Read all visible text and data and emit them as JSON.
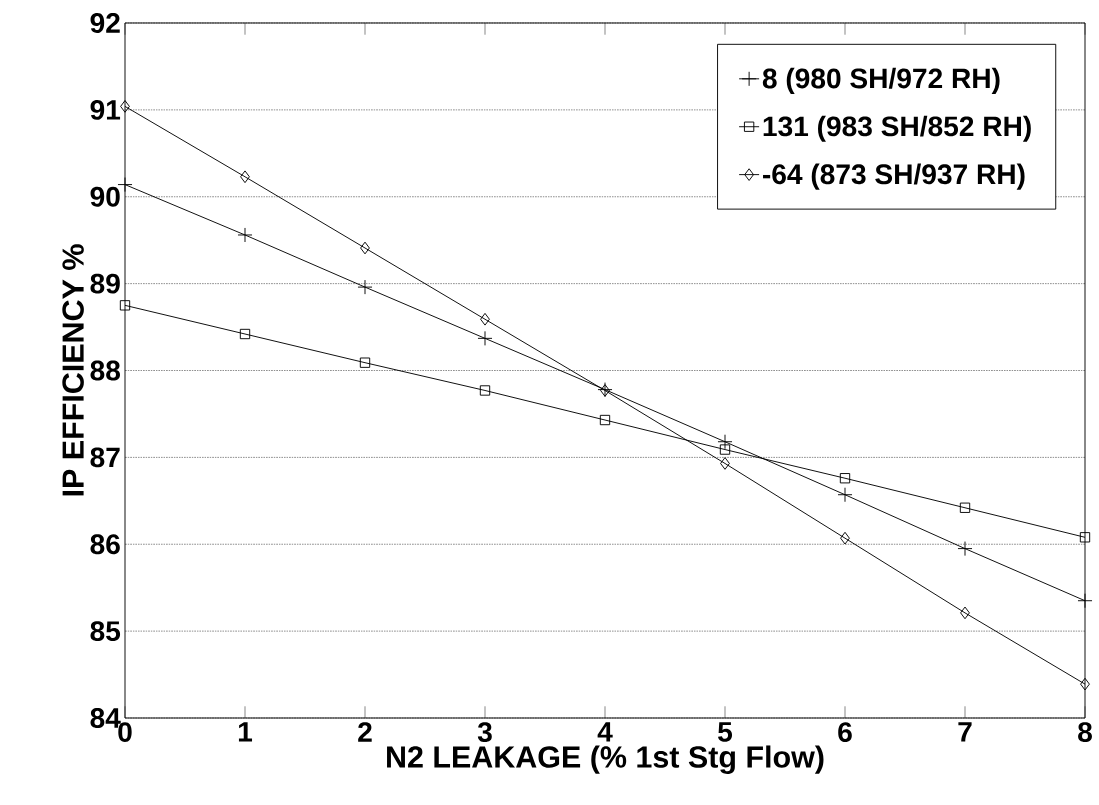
{
  "chart_data": {
    "type": "line",
    "xlabel": "N2 LEAKAGE (% 1st Stg Flow)",
    "ylabel": "IP EFFICIENCY %",
    "x": [
      0,
      1,
      2,
      3,
      4,
      5,
      6,
      7,
      8
    ],
    "series": [
      {
        "name": "8 (980 SH/972 RH)",
        "color": "#000000",
        "marker": "cross",
        "values": [
          90.14,
          89.56,
          88.96,
          88.37,
          87.78,
          87.18,
          86.57,
          85.95,
          85.35
        ]
      },
      {
        "name": "131 (983 SH/852 RH)",
        "color": "#000000",
        "marker": "square",
        "values": [
          88.75,
          88.42,
          88.09,
          87.77,
          87.43,
          87.09,
          86.76,
          86.42,
          86.08
        ]
      },
      {
        "name": "-64 (873 SH/937 RH)",
        "color": "#000000",
        "marker": "diamond",
        "values": [
          91.04,
          90.23,
          89.41,
          88.59,
          87.77,
          86.93,
          86.07,
          85.21,
          84.39
        ]
      }
    ],
    "xlim": [
      0,
      8
    ],
    "ylim": [
      84,
      92
    ],
    "xticks": [
      0,
      1,
      2,
      3,
      4,
      5,
      6,
      7,
      8
    ],
    "yticks": [
      84,
      85,
      86,
      87,
      88,
      89,
      90,
      91,
      92
    ],
    "grid": "y",
    "legend": "top right",
    "line_style": "solid"
  }
}
